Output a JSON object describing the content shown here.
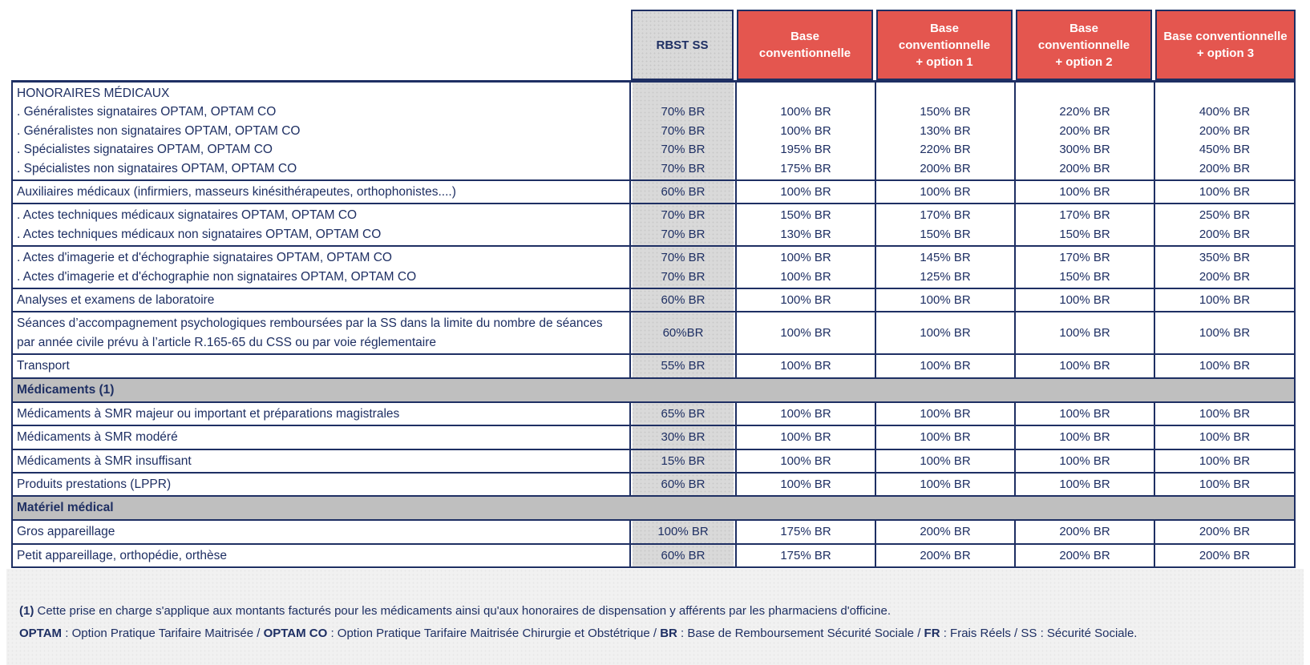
{
  "theme": {
    "navy": "#1e2f63",
    "red": "#e4564f",
    "rbst_bg": "#d9d9d9",
    "section_bg": "#bfbfbf",
    "footer_bg": "#f1f1f1"
  },
  "header": {
    "cols": [
      [
        "RBST SS"
      ],
      [
        "Base",
        "conventionnelle"
      ],
      [
        "Base conventionnelle",
        "+ option 1"
      ],
      [
        "Base conventionnelle",
        "+ option 2"
      ],
      [
        "Base conventionnelle",
        "+ option 3"
      ]
    ]
  },
  "rows": [
    {
      "type": "group",
      "labels": [
        "HONORAIRES MÉDICAUX",
        ". Généralistes signataires OPTAM, OPTAM CO",
        ". Généralistes non signataires OPTAM, OPTAM CO",
        ". Spécialistes signataires OPTAM, OPTAM CO",
        ". Spécialistes non signataires OPTAM, OPTAM CO"
      ],
      "cells": [
        [
          "",
          "70% BR",
          "70% BR",
          "70% BR",
          "70% BR"
        ],
        [
          "",
          "100% BR",
          "100% BR",
          "195% BR",
          "175% BR"
        ],
        [
          "",
          "150% BR",
          "130% BR",
          "220% BR",
          "200% BR"
        ],
        [
          "",
          "220% BR",
          "200% BR",
          "300% BR",
          "200% BR"
        ],
        [
          "",
          "400% BR",
          "200% BR",
          "450% BR",
          "200% BR"
        ]
      ]
    },
    {
      "type": "single",
      "label": "Auxiliaires médicaux (infirmiers, masseurs kinésithérapeutes, orthophonistes....)",
      "cells": [
        "60% BR",
        "100% BR",
        "100% BR",
        "100% BR",
        "100% BR"
      ]
    },
    {
      "type": "group",
      "labels": [
        ". Actes techniques médicaux signataires OPTAM, OPTAM CO",
        ". Actes techniques médicaux non signataires OPTAM, OPTAM CO"
      ],
      "cells": [
        [
          "70% BR",
          "70% BR"
        ],
        [
          "150% BR",
          "130% BR"
        ],
        [
          "170% BR",
          "150% BR"
        ],
        [
          "170% BR",
          "150% BR"
        ],
        [
          "250% BR",
          "200% BR"
        ]
      ]
    },
    {
      "type": "group",
      "labels": [
        ". Actes d'imagerie et d'échographie signataires OPTAM, OPTAM CO",
        ". Actes d'imagerie et d'échographie non signataires OPTAM, OPTAM CO"
      ],
      "cells": [
        [
          "70% BR",
          "70% BR"
        ],
        [
          "100% BR",
          "100% BR"
        ],
        [
          "145% BR",
          "125% BR"
        ],
        [
          "170% BR",
          "150% BR"
        ],
        [
          "350% BR",
          "200% BR"
        ]
      ]
    },
    {
      "type": "single",
      "label": "Analyses et examens de laboratoire",
      "cells": [
        "60% BR",
        "100% BR",
        "100% BR",
        "100% BR",
        "100% BR"
      ]
    },
    {
      "type": "single",
      "label": "Séances d’accompagnement psychologiques remboursées par la SS dans la limite du nombre de séances par année civile prévu à l’article R.165-65 du CSS ou par voie réglementaire",
      "cells": [
        "60%BR",
        "100% BR",
        "100% BR",
        "100% BR",
        "100% BR"
      ]
    },
    {
      "type": "single",
      "label": "Transport",
      "cells": [
        "55% BR",
        "100% BR",
        "100% BR",
        "100% BR",
        "100% BR"
      ]
    },
    {
      "type": "section",
      "label": "Médicaments (1)"
    },
    {
      "type": "single",
      "label": "Médicaments à SMR majeur ou important et préparations magistrales",
      "cells": [
        "65% BR",
        "100% BR",
        "100% BR",
        "100% BR",
        "100% BR"
      ]
    },
    {
      "type": "single",
      "label": "Médicaments à SMR modéré",
      "cells": [
        "30% BR",
        "100% BR",
        "100% BR",
        "100% BR",
        "100% BR"
      ]
    },
    {
      "type": "single",
      "label": "Médicaments à SMR insuffisant",
      "cells": [
        "15% BR",
        "100% BR",
        "100% BR",
        "100% BR",
        "100% BR"
      ]
    },
    {
      "type": "single",
      "label": "Produits prestations (LPPR)",
      "cells": [
        "60% BR",
        "100% BR",
        "100% BR",
        "100% BR",
        "100% BR"
      ]
    },
    {
      "type": "section",
      "label": "Matériel médical"
    },
    {
      "type": "single",
      "label": "Gros appareillage",
      "cells": [
        "100% BR",
        "175% BR",
        "200% BR",
        "200% BR",
        "200% BR"
      ]
    },
    {
      "type": "single",
      "label": "Petit appareillage, orthopédie, orthèse",
      "cells": [
        "60% BR",
        "175% BR",
        "200% BR",
        "200% BR",
        "200% BR"
      ]
    }
  ],
  "footnotes": {
    "line1": [
      {
        "text": "(1)",
        "bold": true
      },
      {
        "text": " Cette prise en charge s'applique aux montants facturés pour les médicaments ainsi qu'aux honoraires de dispensation y afférents par les pharmaciens d'officine.",
        "bold": false
      }
    ],
    "line2": [
      {
        "text": "OPTAM",
        "bold": true
      },
      {
        "text": " : Option Pratique Tarifaire Maitrisée / ",
        "bold": false
      },
      {
        "text": "OPTAM CO",
        "bold": true
      },
      {
        "text": " : Option Pratique Tarifaire Maitrisée Chirurgie et Obstétrique / ",
        "bold": false
      },
      {
        "text": "BR",
        "bold": true
      },
      {
        "text": " : Base de Remboursement Sécurité Sociale / ",
        "bold": false
      },
      {
        "text": "FR",
        "bold": true
      },
      {
        "text": " : Frais Réels / SS : Sécurité Sociale.",
        "bold": false
      }
    ]
  }
}
